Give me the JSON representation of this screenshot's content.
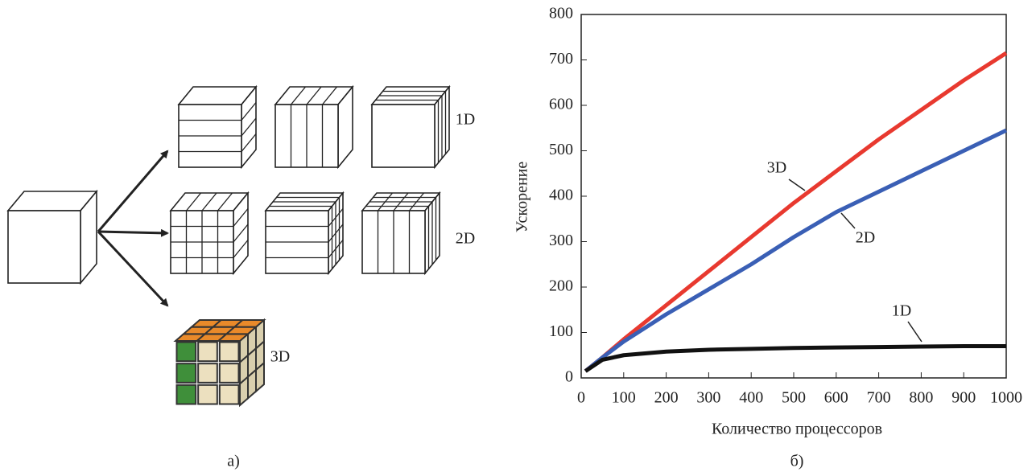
{
  "diagram": {
    "labels": [
      "1D",
      "2D",
      "3D"
    ],
    "caption": "а)"
  },
  "chart_data": {
    "type": "line",
    "caption": "б)",
    "x_label": "Количество процессоров",
    "y_label": "Ускорение",
    "x": [
      10,
      50,
      100,
      200,
      300,
      400,
      500,
      600,
      700,
      800,
      900,
      1000
    ],
    "series": [
      {
        "name": "3D",
        "color": "#e8392f",
        "values": [
          15,
          45,
          85,
          160,
          235,
          310,
          385,
          455,
          525,
          590,
          655,
          715
        ]
      },
      {
        "name": "2D",
        "color": "#3a5fb5",
        "values": [
          15,
          45,
          80,
          140,
          195,
          250,
          310,
          365,
          410,
          455,
          500,
          545
        ]
      },
      {
        "name": "1D",
        "color": "#111111",
        "values": [
          15,
          40,
          50,
          58,
          62,
          64,
          66,
          67,
          68,
          69,
          70,
          70
        ]
      }
    ],
    "xlim": [
      0,
      1000
    ],
    "ylim": [
      0,
      800
    ],
    "xticks": [
      0,
      100,
      200,
      300,
      400,
      500,
      600,
      700,
      800,
      900,
      1000
    ],
    "yticks": [
      0,
      100,
      200,
      300,
      400,
      500,
      600,
      700,
      800
    ]
  }
}
